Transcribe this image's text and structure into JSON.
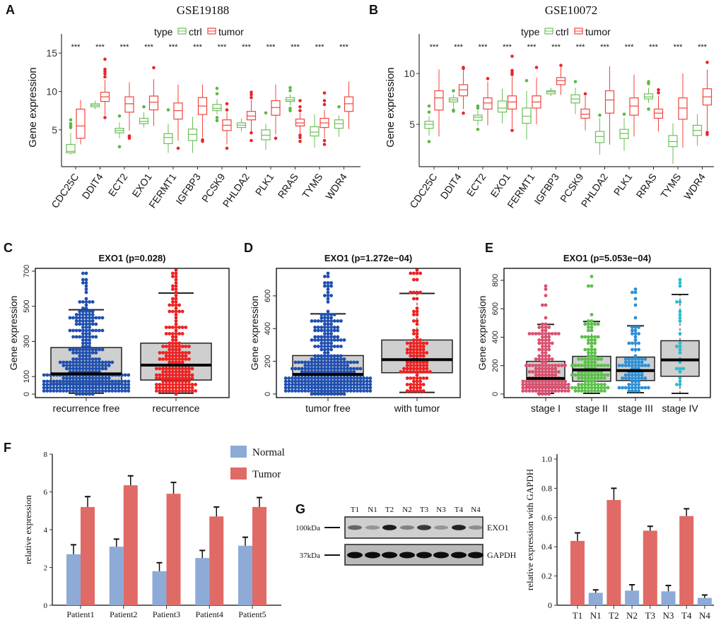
{
  "panel_labels": [
    "A",
    "B",
    "C",
    "D",
    "E",
    "F",
    "G"
  ],
  "chart_data": [
    {
      "panel": "A",
      "type": "box",
      "title": "GSE19188",
      "ylabel": "Gene expression",
      "yticks": [
        "5",
        "10",
        "15"
      ],
      "ylim": [
        0.2,
        17.5
      ],
      "legend": {
        "title": "type",
        "entries": [
          "ctrl",
          "tumor"
        ],
        "placement": "top"
      },
      "colors": {
        "ctrl": "#6cbf58",
        "tumor": "#f0443c"
      },
      "significance": "***",
      "categories": [
        "CDC25C",
        "DDIT4",
        "ECT2",
        "EXO1",
        "FERMT1",
        "IGFBP3",
        "PCSK9",
        "PHLDA2",
        "PLK1",
        "RRAS",
        "TYMS",
        "WDR4"
      ],
      "series": [
        {
          "name": "ctrl",
          "boxes": [
            [
              1.8,
              2.0,
              2.2,
              3.1,
              4.6
            ],
            [
              7.7,
              8.0,
              8.2,
              8.4,
              8.8
            ],
            [
              3.9,
              4.6,
              4.9,
              5.2,
              6.0
            ],
            [
              5.3,
              5.8,
              6.1,
              6.5,
              7.3
            ],
            [
              2.0,
              3.2,
              4.0,
              4.5,
              5.8
            ],
            [
              2.0,
              3.6,
              4.4,
              5.1,
              6.7
            ],
            [
              7.0,
              7.5,
              7.8,
              8.3,
              9.0
            ],
            [
              4.8,
              5.3,
              5.6,
              5.9,
              6.5
            ],
            [
              2.4,
              3.7,
              4.3,
              5.0,
              5.8
            ],
            [
              8.2,
              8.7,
              8.9,
              9.2,
              9.6
            ],
            [
              2.7,
              4.2,
              4.7,
              5.4,
              7.0
            ],
            [
              4.1,
              5.2,
              5.8,
              6.3,
              6.9
            ]
          ],
          "outliers": [
            [
              5.3,
              5.5,
              5.8,
              6.3
            ],
            [],
            [
              2.8,
              6.8
            ],
            [
              8.0
            ],
            [
              7.6
            ],
            [],
            [
              6.2,
              6.6,
              9.7,
              10.4
            ],
            [],
            [
              7.2
            ],
            [
              7.5,
              7.8,
              10.1,
              10.5
            ],
            [],
            [
              8.0
            ]
          ]
        },
        {
          "name": "tumor",
          "boxes": [
            [
              3.1,
              3.9,
              5.5,
              7.7,
              8.9
            ],
            [
              6.9,
              8.7,
              9.3,
              9.9,
              11.5
            ],
            [
              4.9,
              7.3,
              8.4,
              9.3,
              11.2
            ],
            [
              5.5,
              7.6,
              8.6,
              9.4,
              11.6
            ],
            [
              3.6,
              6.4,
              7.5,
              8.5,
              10.9
            ],
            [
              4.0,
              7.0,
              8.1,
              9.2,
              10.9
            ],
            [
              3.1,
              4.9,
              5.6,
              6.3,
              7.3
            ],
            [
              4.8,
              6.3,
              6.8,
              7.4,
              8.9
            ],
            [
              4.4,
              6.9,
              7.9,
              8.8,
              10.9
            ],
            [
              4.5,
              5.5,
              5.9,
              6.4,
              7.2
            ],
            [
              3.9,
              5.3,
              5.9,
              6.5,
              7.6
            ],
            [
              5.1,
              7.4,
              8.4,
              9.3,
              11.3
            ]
          ],
          "outliers": [
            [],
            [
              6.6,
              11.9,
              12.3,
              12.6,
              12.9,
              14.2
            ],
            [
              3.9,
              4.1,
              4.2
            ],
            [
              13.1
            ],
            [
              2.6
            ],
            [
              3.5,
              3.7
            ],
            [
              2.6,
              7.6,
              8.4
            ],
            [
              3.6,
              4.6,
              9.2,
              9.6,
              9.9
            ],
            [
              3.9
            ],
            [
              3.5,
              4.0,
              4.3,
              7.5,
              8.0,
              8.8
            ],
            [
              3.1,
              3.6,
              8.3,
              8.8,
              9.8
            ],
            []
          ]
        }
      ]
    },
    {
      "panel": "B",
      "type": "box",
      "title": "GSE10072",
      "ylabel": "Gene expression",
      "yticks": [
        "5",
        "10"
      ],
      "ylim": [
        0.83,
        13.9
      ],
      "legend": {
        "title": "type",
        "entries": [
          "ctrl",
          "tumor"
        ],
        "placement": "top"
      },
      "colors": {
        "ctrl": "#6cbf58",
        "tumor": "#f0443c"
      },
      "significance": "***",
      "categories": [
        "CDC25C",
        "DDIT4",
        "ECT2",
        "EXO1",
        "FERMT1",
        "IGFBP3",
        "PCSK9",
        "PHLDA2",
        "PLK1",
        "RRAS",
        "TYMS",
        "WDR4"
      ],
      "series": [
        {
          "name": "ctrl",
          "boxes": [
            [
              3.9,
              4.6,
              5.0,
              5.3,
              5.8
            ],
            [
              6.6,
              7.2,
              7.4,
              7.6,
              7.9
            ],
            [
              4.9,
              5.4,
              5.7,
              5.9,
              6.4
            ],
            [
              5.1,
              6.2,
              6.6,
              7.3,
              8.5
            ],
            [
              3.5,
              5.1,
              5.8,
              6.6,
              8.3
            ],
            [
              7.8,
              8.0,
              8.2,
              8.3,
              8.6
            ],
            [
              6.0,
              7.1,
              7.5,
              7.9,
              8.6
            ],
            [
              2.0,
              3.2,
              3.8,
              4.3,
              5.6
            ],
            [
              2.4,
              3.6,
              4.1,
              4.5,
              5.6
            ],
            [
              7.1,
              7.5,
              7.7,
              8.0,
              8.6
            ],
            [
              1.1,
              2.8,
              3.3,
              3.9,
              5.1
            ],
            [
              2.9,
              3.9,
              4.4,
              4.9,
              6.0
            ]
          ],
          "outliers": [
            [
              3.3,
              6.2,
              6.8
            ],
            [
              6.3,
              6.4,
              8.3
            ],
            [
              4.5,
              6.6,
              6.8
            ],
            [],
            [
              9.3
            ],
            [],
            [
              9.2
            ],
            [
              5.9
            ],
            [
              6.0
            ],
            [
              6.5,
              9.0,
              9.2
            ],
            [],
            []
          ]
        },
        {
          "name": "tumor",
          "boxes": [
            [
              3.8,
              6.4,
              7.6,
              8.3,
              10.4
            ],
            [
              6.5,
              7.8,
              8.4,
              8.9,
              10.4
            ],
            [
              4.9,
              6.5,
              7.1,
              7.6,
              9.2
            ],
            [
              4.6,
              6.5,
              7.2,
              7.8,
              9.7
            ],
            [
              5.0,
              6.6,
              7.2,
              7.8,
              9.6
            ],
            [
              7.9,
              8.9,
              9.3,
              9.6,
              10.6
            ],
            [
              4.4,
              5.6,
              6.0,
              6.5,
              7.8
            ],
            [
              3.0,
              6.1,
              7.4,
              8.3,
              10.7
            ],
            [
              3.8,
              5.9,
              6.8,
              7.6,
              9.9
            ],
            [
              4.3,
              5.6,
              6.1,
              6.5,
              7.8
            ],
            [
              2.7,
              5.5,
              6.6,
              7.6,
              10.0
            ],
            [
              4.4,
              6.9,
              7.7,
              8.5,
              10.4
            ]
          ],
          "outliers": [
            [],
            [
              6.1,
              10.5,
              10.6
            ],
            [
              9.5
            ],
            [
              4.4,
              9.9,
              10.1,
              10.3,
              11.7
            ],
            [
              10.6
            ],
            [
              10.8
            ],
            [
              8.0
            ],
            [],
            [],
            [
              8.1,
              8.4
            ],
            [],
            [
              4.0,
              4.2,
              11.1
            ]
          ]
        }
      ]
    },
    {
      "panel": "C",
      "type": "box",
      "title": "EXO1 (p=0.028)",
      "ylabel": "Gene expression",
      "yticks": [
        "0",
        "100",
        "300",
        "500",
        "700"
      ],
      "ylim": [
        -20,
        716
      ],
      "categories": [
        "recurrence free",
        "recurrence"
      ],
      "boxes": [
        [
          5,
          60,
          115,
          265,
          480
        ],
        [
          5,
          80,
          165,
          290,
          575
        ]
      ],
      "colors": [
        "#1f4fb0",
        "#f02020"
      ]
    },
    {
      "panel": "D",
      "type": "box",
      "title": "EXO1 (p=1.272e−04)",
      "ylabel": "Gene expression",
      "yticks": [
        "0",
        "200",
        "400",
        "600"
      ],
      "ylim": [
        -22,
        768
      ],
      "categories": [
        "tumor free",
        "with tumor"
      ],
      "boxes": [
        [
          5,
          55,
          120,
          235,
          490
        ],
        [
          10,
          130,
          210,
          330,
          615
        ]
      ],
      "colors": [
        "#1f4fb0",
        "#f02020"
      ]
    },
    {
      "panel": "E",
      "type": "box",
      "title": "EXO1 (p=5.053e−04)",
      "ylabel": "Gene expression",
      "yticks": [
        "0",
        "200",
        "400",
        "600",
        "800"
      ],
      "ylim": [
        -25,
        884
      ],
      "categories": [
        "stage I",
        "stage II",
        "stage III",
        "stage IV"
      ],
      "boxes": [
        [
          5,
          50,
          110,
          230,
          490
        ],
        [
          5,
          90,
          170,
          265,
          510
        ],
        [
          10,
          95,
          165,
          260,
          480
        ],
        [
          5,
          125,
          240,
          375,
          700
        ]
      ],
      "colors": [
        "#d9506e",
        "#5cbf4a",
        "#2e8fd6",
        "#29bcd0"
      ]
    },
    {
      "panel": "F",
      "type": "bar",
      "ylabel": "relative expression",
      "yticks": [
        "0",
        "2",
        "4",
        "6",
        "8"
      ],
      "ylim": [
        0,
        8
      ],
      "categories": [
        "Patient1",
        "Patient2",
        "Patient3",
        "Patient4",
        "Patient5"
      ],
      "legend": {
        "entries": [
          "Normal",
          "Tumor"
        ],
        "placement": "top-right"
      },
      "series": [
        {
          "name": "Normal",
          "color": "#8eaad6",
          "values": [
            2.7,
            3.1,
            1.8,
            2.5,
            3.15
          ],
          "errors": [
            0.5,
            0.4,
            0.45,
            0.4,
            0.45
          ]
        },
        {
          "name": "Tumor",
          "color": "#e06a66",
          "values": [
            5.2,
            6.35,
            5.9,
            4.7,
            5.2
          ],
          "errors": [
            0.55,
            0.5,
            0.6,
            0.5,
            0.5
          ]
        }
      ]
    },
    {
      "panel": "G",
      "type": "bar",
      "ylabel": "relative expression with GAPDH",
      "yticks": [
        "0",
        "0.2",
        "0.4",
        "0.6",
        "0.8",
        "1.0"
      ],
      "ylim": [
        0,
        1.0
      ],
      "categories": [
        "T1",
        "N1",
        "T2",
        "N2",
        "T3",
        "N3",
        "T4",
        "N4"
      ],
      "values": [
        0.44,
        0.085,
        0.72,
        0.1,
        0.51,
        0.095,
        0.61,
        0.05
      ],
      "errors": [
        0.055,
        0.02,
        0.08,
        0.04,
        0.03,
        0.04,
        0.05,
        0.02
      ],
      "colors": {
        "T": "#e06a66",
        "N": "#8eaad6"
      }
    }
  ],
  "blot": {
    "lanes": [
      "T1",
      "N1",
      "T2",
      "N2",
      "T3",
      "N3",
      "T4",
      "N4"
    ],
    "markers": [
      "100kDa",
      "37kDa"
    ],
    "bands": [
      "EXO1",
      "GAPDH"
    ]
  }
}
